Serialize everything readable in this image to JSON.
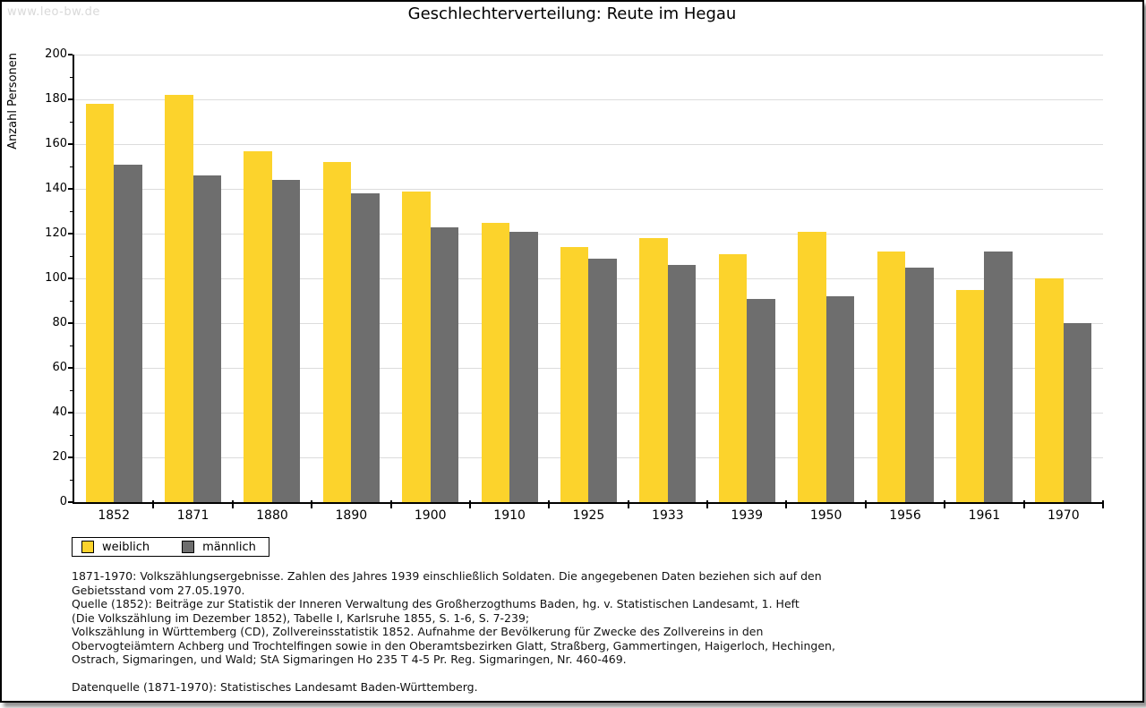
{
  "watermark": "www.leo-bw.de",
  "chart_data": {
    "type": "bar",
    "title": "Geschlechterverteilung: Reute im Hegau",
    "ylabel": "Anzahl Personen",
    "xlabel": "",
    "ylim": [
      0,
      200
    ],
    "ytick_step": 20,
    "grid": true,
    "legend_position": "bottom-left",
    "categories": [
      "1852",
      "1871",
      "1880",
      "1890",
      "1900",
      "1910",
      "1925",
      "1933",
      "1939",
      "1950",
      "1956",
      "1961",
      "1970"
    ],
    "series": [
      {
        "name": "weiblich",
        "color": "#fcd32c",
        "values": [
          178,
          182,
          157,
          152,
          139,
          125,
          114,
          118,
          111,
          121,
          112,
          95,
          100
        ]
      },
      {
        "name": "männlich",
        "color": "#6e6e6e",
        "values": [
          151,
          146,
          144,
          138,
          123,
          121,
          109,
          106,
          91,
          92,
          105,
          112,
          80
        ]
      }
    ]
  },
  "footnotes": {
    "lines": [
      "1871-1970: Volkszählungsergebnisse. Zahlen des Jahres 1939 einschließlich Soldaten. Die angegebenen Daten beziehen sich auf den",
      "Gebietsstand vom 27.05.1970.",
      "Quelle (1852): Beiträge zur Statistik der Inneren Verwaltung des Großherzogthums Baden, hg. v. Statistischen Landesamt, 1. Heft",
      "(Die Volkszählung im Dezember 1852), Tabelle I, Karlsruhe 1855, S. 1-6, S. 7-239;",
      "Volkszählung in Württemberg (CD), Zollvereinsstatistik 1852. Aufnahme der Bevölkerung für Zwecke des Zollvereins in den",
      "Obervogteiämtern Achberg und Trochtelfingen sowie in den Oberamtsbezirken Glatt, Straßberg, Gammertingen, Haigerloch, Hechingen,",
      "Ostrach, Sigmaringen, und Wald; StA Sigmaringen Ho 235 T 4-5 Pr. Reg. Sigmaringen, Nr. 460-469.",
      "",
      "Datenquelle (1871-1970): Statistisches Landesamt Baden-Württemberg."
    ]
  }
}
